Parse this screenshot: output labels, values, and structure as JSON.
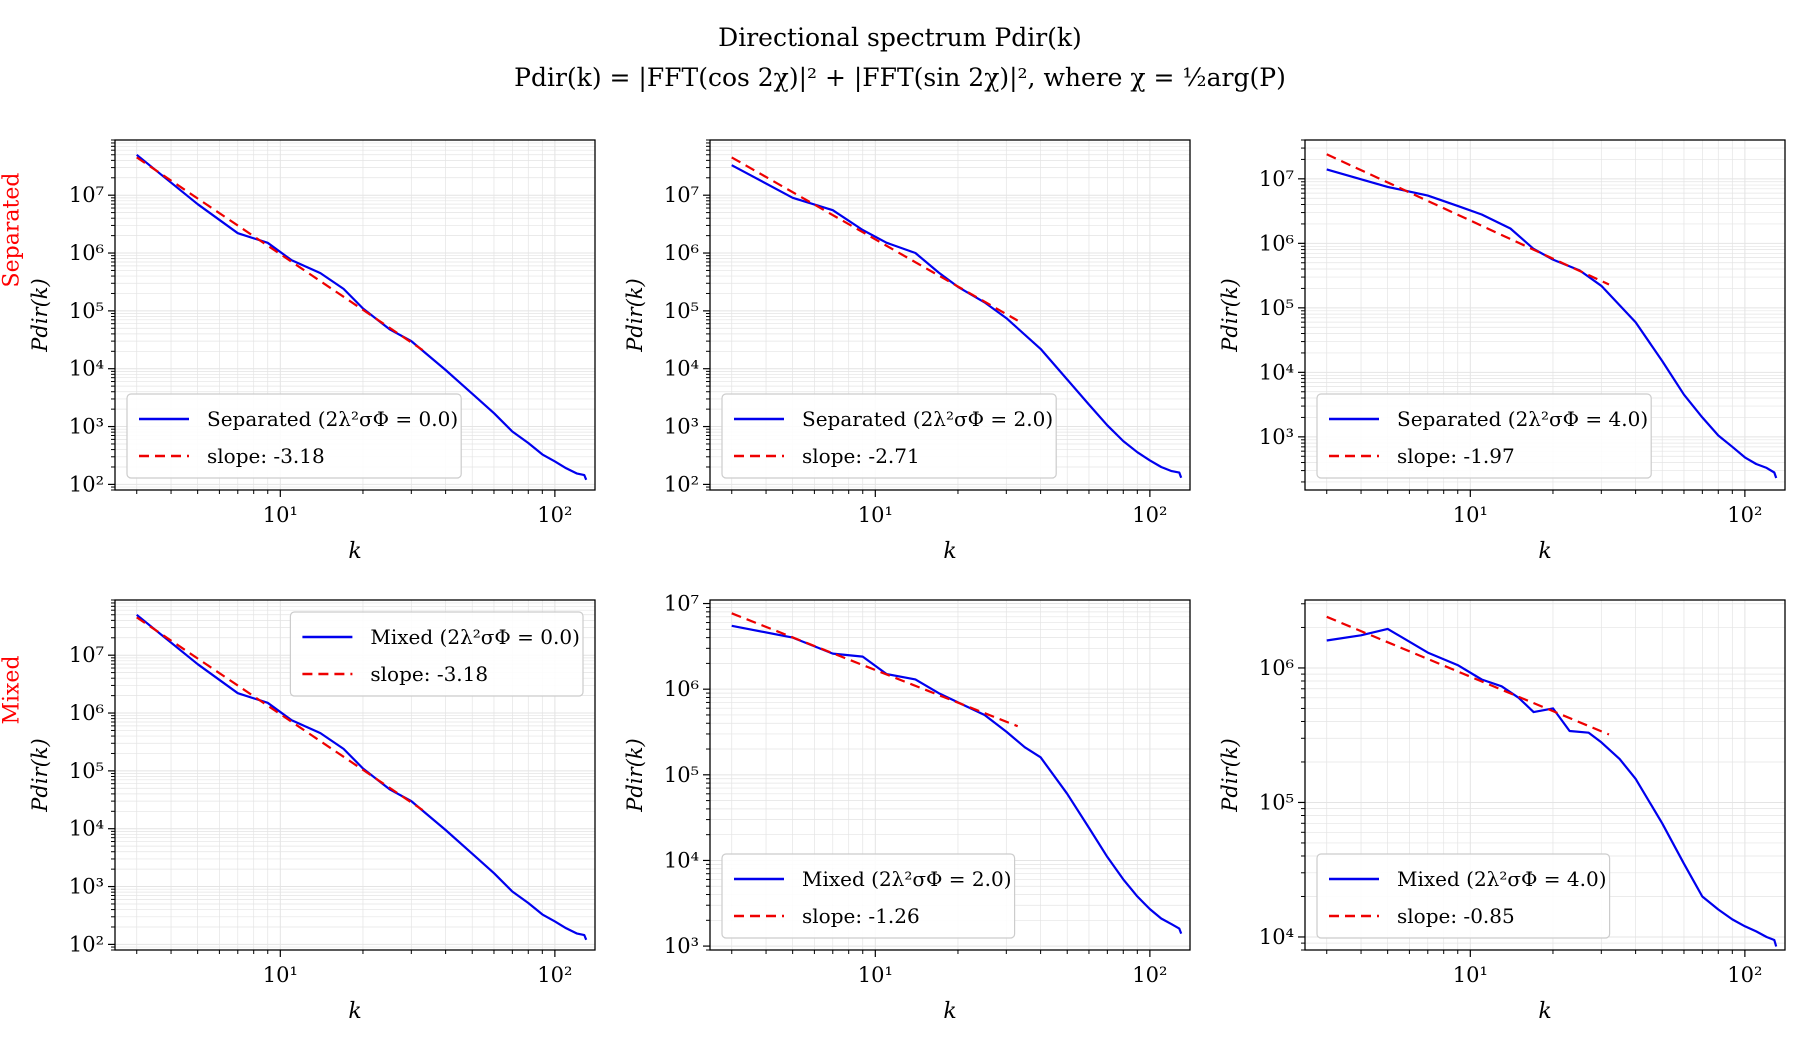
{
  "figure": {
    "title_line1": "Directional spectrum Pdir(k)",
    "title_line2": "Pdir(k) = |FFT(cos 2χ)|² + |FFT(sin 2χ)|², where χ = ½arg(P)",
    "row_labels": [
      "Separated",
      "Mixed"
    ],
    "colors": {
      "data": "#0000ee",
      "fit": "#ee0000",
      "row_label": "#ff0000",
      "grid": "#e4e4e4"
    }
  },
  "chart_data": [
    {
      "type": "line",
      "row": 0,
      "col": 0,
      "xlabel": "k",
      "ylabel": "Pdir(k)",
      "xscale": "log",
      "yscale": "log",
      "xlim": [
        2.5,
        140
      ],
      "ylim": [
        80,
        90000000
      ],
      "xticks": [
        10,
        100
      ],
      "xtick_labels": [
        "10¹",
        "10²"
      ],
      "yticks": [
        100,
        1000,
        10000,
        100000,
        1000000,
        10000000
      ],
      "ytick_labels": [
        "10²",
        "10³",
        "10⁴",
        "10⁵",
        "10⁶",
        "10⁷"
      ],
      "grid": true,
      "legend_loc": "lower left",
      "series": [
        {
          "name": "Separated (2λ²σΦ = 0.0)",
          "style": "solid",
          "x": [
            3,
            5,
            7,
            9,
            11,
            14,
            17,
            20,
            25,
            30,
            40,
            50,
            60,
            70,
            80,
            90,
            100,
            110,
            120,
            128,
            130
          ],
          "y": [
            50000000,
            7000000,
            2200000,
            1500000,
            750000,
            450000,
            240000,
            110000,
            48000,
            30000,
            9500,
            3700,
            1700,
            820,
            520,
            330,
            250,
            190,
            155,
            145,
            120
          ]
        },
        {
          "name": "slope: -3.18",
          "style": "dashed",
          "x": [
            3,
            33
          ],
          "y": [
            45000000,
            21000
          ]
        }
      ]
    },
    {
      "type": "line",
      "row": 0,
      "col": 1,
      "xlabel": "k",
      "ylabel": "Pdir(k)",
      "xscale": "log",
      "yscale": "log",
      "xlim": [
        2.5,
        140
      ],
      "ylim": [
        80,
        90000000
      ],
      "xticks": [
        10,
        100
      ],
      "xtick_labels": [
        "10¹",
        "10²"
      ],
      "yticks": [
        100,
        1000,
        10000,
        100000,
        1000000,
        10000000
      ],
      "ytick_labels": [
        "10²",
        "10³",
        "10⁴",
        "10⁵",
        "10⁶",
        "10⁷"
      ],
      "grid": true,
      "legend_loc": "lower left",
      "series": [
        {
          "name": "Separated (2λ²σΦ = 2.0)",
          "style": "solid",
          "x": [
            3,
            5,
            7,
            9,
            11,
            14,
            17,
            20,
            25,
            30,
            40,
            50,
            60,
            70,
            80,
            90,
            100,
            110,
            120,
            128,
            130
          ],
          "y": [
            33000000,
            9000000,
            5500000,
            2500000,
            1500000,
            1000000,
            460000,
            260000,
            140000,
            75000,
            22000,
            6500,
            2400,
            1050,
            560,
            360,
            260,
            200,
            170,
            160,
            130
          ]
        },
        {
          "name": "slope: -2.71",
          "style": "dashed",
          "x": [
            3,
            33
          ],
          "y": [
            45000000,
            68000
          ]
        }
      ]
    },
    {
      "type": "line",
      "row": 0,
      "col": 2,
      "xlabel": "k",
      "ylabel": "Pdir(k)",
      "xscale": "log",
      "yscale": "log",
      "xlim": [
        2.5,
        140
      ],
      "ylim": [
        150,
        40000000
      ],
      "xticks": [
        10,
        100
      ],
      "xtick_labels": [
        "10¹",
        "10²"
      ],
      "yticks": [
        1000,
        10000,
        100000,
        1000000,
        10000000
      ],
      "ytick_labels": [
        "10³",
        "10⁴",
        "10⁵",
        "10⁶",
        "10⁷"
      ],
      "grid": true,
      "legend_loc": "lower left",
      "series": [
        {
          "name": "Separated (2λ²σΦ = 4.0)",
          "style": "solid",
          "x": [
            3,
            5,
            7,
            9,
            11,
            14,
            17,
            20,
            25,
            30,
            40,
            50,
            60,
            70,
            80,
            90,
            100,
            110,
            120,
            128,
            130
          ],
          "y": [
            14000000,
            7500000,
            5500000,
            3800000,
            2800000,
            1700000,
            820000,
            560000,
            380000,
            220000,
            60000,
            15000,
            4500,
            2000,
            1050,
            700,
            480,
            380,
            330,
            280,
            230
          ]
        },
        {
          "name": "slope: -1.97",
          "style": "dashed",
          "x": [
            3,
            32
          ],
          "y": [
            24000000,
            230000
          ]
        }
      ]
    },
    {
      "type": "line",
      "row": 1,
      "col": 0,
      "xlabel": "k",
      "ylabel": "Pdir(k)",
      "xscale": "log",
      "yscale": "log",
      "xlim": [
        2.5,
        140
      ],
      "ylim": [
        80,
        90000000
      ],
      "xticks": [
        10,
        100
      ],
      "xtick_labels": [
        "10¹",
        "10²"
      ],
      "yticks": [
        100,
        1000,
        10000,
        100000,
        1000000,
        10000000
      ],
      "ytick_labels": [
        "10²",
        "10³",
        "10⁴",
        "10⁵",
        "10⁶",
        "10⁷"
      ],
      "grid": true,
      "legend_loc": "upper right",
      "series": [
        {
          "name": "Mixed (2λ²σΦ = 0.0)",
          "style": "solid",
          "x": [
            3,
            5,
            7,
            9,
            11,
            14,
            17,
            20,
            25,
            30,
            40,
            50,
            60,
            70,
            80,
            90,
            100,
            110,
            120,
            128,
            130
          ],
          "y": [
            50000000,
            7000000,
            2200000,
            1500000,
            750000,
            450000,
            240000,
            110000,
            48000,
            30000,
            9500,
            3700,
            1700,
            820,
            520,
            330,
            250,
            190,
            155,
            145,
            120
          ]
        },
        {
          "name": "slope: -3.18",
          "style": "dashed",
          "x": [
            3,
            33
          ],
          "y": [
            45000000,
            21000
          ]
        }
      ]
    },
    {
      "type": "line",
      "row": 1,
      "col": 1,
      "xlabel": "k",
      "ylabel": "Pdir(k)",
      "xscale": "log",
      "yscale": "log",
      "xlim": [
        2.5,
        140
      ],
      "ylim": [
        900,
        11000000
      ],
      "xticks": [
        10,
        100
      ],
      "xtick_labels": [
        "10¹",
        "10²"
      ],
      "yticks": [
        1000,
        10000,
        100000,
        1000000,
        10000000
      ],
      "ytick_labels": [
        "10³",
        "10⁴",
        "10⁵",
        "10⁶",
        "10⁷"
      ],
      "grid": true,
      "legend_loc": "lower left",
      "series": [
        {
          "name": "Mixed (2λ²σΦ = 2.0)",
          "style": "solid",
          "x": [
            3,
            5,
            7,
            9,
            11,
            14,
            17,
            20,
            25,
            30,
            35,
            40,
            50,
            60,
            70,
            80,
            90,
            100,
            110,
            120,
            128,
            130
          ],
          "y": [
            5500000,
            4000000,
            2600000,
            2400000,
            1500000,
            1300000,
            900000,
            700000,
            500000,
            320000,
            210000,
            160000,
            60000,
            24000,
            11000,
            6000,
            3800,
            2700,
            2100,
            1800,
            1600,
            1400
          ]
        },
        {
          "name": "slope: -1.26",
          "style": "dashed",
          "x": [
            3,
            33
          ],
          "y": [
            7700000,
            370000
          ]
        }
      ]
    },
    {
      "type": "line",
      "row": 1,
      "col": 2,
      "xlabel": "k",
      "ylabel": "Pdir(k)",
      "xscale": "log",
      "yscale": "log",
      "xlim": [
        2.5,
        140
      ],
      "ylim": [
        8000,
        3200000
      ],
      "xticks": [
        10,
        100
      ],
      "xtick_labels": [
        "10¹",
        "10²"
      ],
      "yticks": [
        10000,
        100000,
        1000000
      ],
      "ytick_labels": [
        "10⁴",
        "10⁵",
        "10⁶"
      ],
      "grid": true,
      "legend_loc": "lower left",
      "series": [
        {
          "name": "Mixed (2λ²σΦ = 4.0)",
          "style": "solid",
          "x": [
            3,
            4,
            5,
            7,
            9,
            11,
            13,
            15,
            17,
            20,
            23,
            27,
            30,
            35,
            40,
            50,
            60,
            70,
            80,
            90,
            100,
            110,
            120,
            128,
            130
          ],
          "y": [
            1600000,
            1750000,
            1950000,
            1300000,
            1050000,
            820000,
            730000,
            600000,
            470000,
            500000,
            340000,
            330000,
            280000,
            210000,
            150000,
            70000,
            35000,
            20000,
            16000,
            13500,
            12000,
            11000,
            10000,
            9500,
            8500
          ]
        },
        {
          "name": "slope: -0.85",
          "style": "dashed",
          "x": [
            3,
            32
          ],
          "y": [
            2400000,
            320000
          ]
        }
      ]
    }
  ]
}
